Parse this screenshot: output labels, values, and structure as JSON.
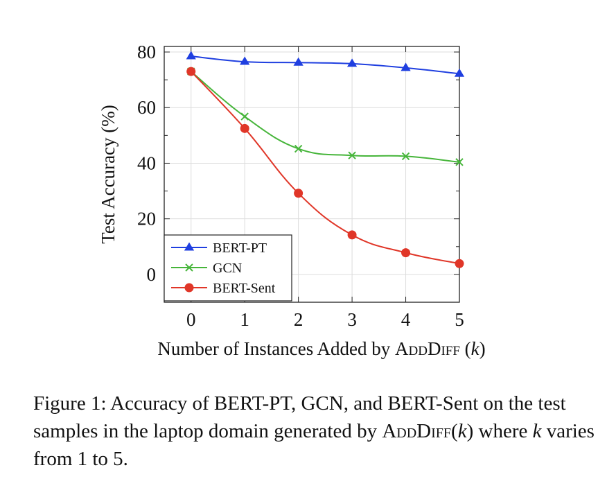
{
  "chart_data": {
    "type": "line",
    "xlabel_parts": [
      "Number of Instances Added by ",
      "AddDiff",
      " (",
      "k",
      ")"
    ],
    "ylabel": "Test Accuracy (%)",
    "x": [
      0,
      1,
      2,
      3,
      4,
      5
    ],
    "xlim": [
      -0.5,
      5
    ],
    "ylim": [
      -10,
      82
    ],
    "xticks": [
      "0",
      "1",
      "2",
      "3",
      "4",
      "5"
    ],
    "yticks": [
      0,
      20,
      40,
      60,
      80
    ],
    "grid": true,
    "legend_position": "bottom-left",
    "series": [
      {
        "name": "BERT-PT",
        "color": "#1f3fe0",
        "marker": "triangle",
        "values": [
          78.5,
          76.5,
          76.2,
          75.8,
          74.3,
          72.2
        ]
      },
      {
        "name": "GCN",
        "color": "#46b53a",
        "marker": "cross",
        "values": [
          73,
          56.8,
          45.2,
          42.8,
          42.5,
          40.4
        ]
      },
      {
        "name": "BERT-Sent",
        "color": "#e03628",
        "marker": "circle",
        "values": [
          73,
          52.5,
          29.2,
          14.2,
          7.8,
          3.9
        ]
      }
    ]
  },
  "caption": {
    "prefix": "Figure 1: Accuracy of BERT-PT, GCN, and BERT-Sent on the test samples in the laptop domain generated by ",
    "method": "AddDiff",
    "arg_open": "(",
    "arg_k": "k",
    "arg_close": ")",
    "suffix_a": " where ",
    "suffix_k": "k",
    "suffix_b": " varies from 1 to 5."
  }
}
